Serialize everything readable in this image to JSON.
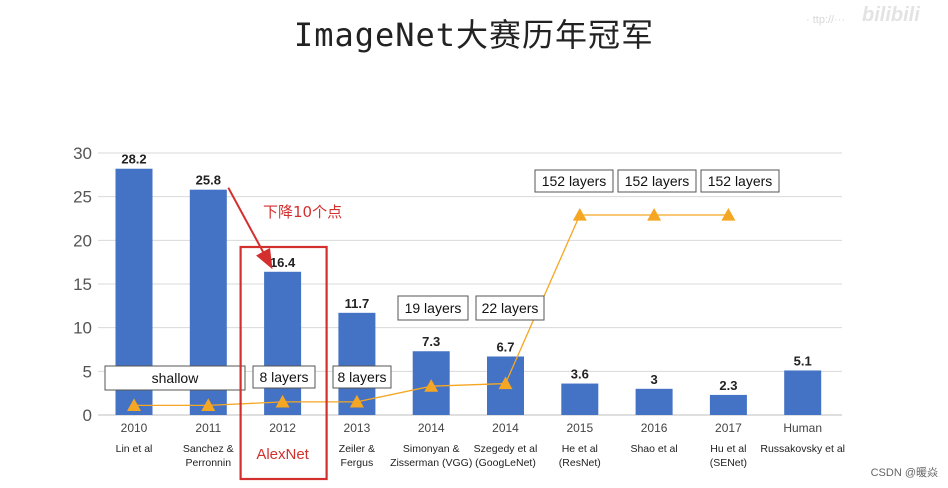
{
  "page": {
    "title": "ImageNet大赛历年冠军",
    "watermark_url": "· ttp://···",
    "watermark_logo": "bilibili",
    "credit": "CSDN @暖焱"
  },
  "chart_data": {
    "type": "bar",
    "title": "ImageNet大赛历年冠军",
    "xlabel": "",
    "ylabel": "",
    "ylim": [
      0,
      30
    ],
    "yticks": [
      0,
      5,
      10,
      15,
      20,
      25,
      30
    ],
    "grid": true,
    "bar_color": "#4472c4",
    "line_color": "#f5a623",
    "highlight_color": "#d32f2f",
    "categories": [
      {
        "year": "2010",
        "label": [
          "Lin et al"
        ]
      },
      {
        "year": "2011",
        "label": [
          "Sanchez &",
          "Perronnin"
        ]
      },
      {
        "year": "2012",
        "label": [
          "AlexNet"
        ]
      },
      {
        "year": "2013",
        "label": [
          "Zeiler &",
          "Fergus"
        ]
      },
      {
        "year": "2014",
        "label": [
          "Simonyan &",
          "Zisserman (VGG)"
        ]
      },
      {
        "year": "2014",
        "label": [
          "Szegedy et al",
          "(GoogLeNet)"
        ]
      },
      {
        "year": "2015",
        "label": [
          "He et al",
          "(ResNet)"
        ]
      },
      {
        "year": "2016",
        "label": [
          "Shao et al"
        ]
      },
      {
        "year": "2017",
        "label": [
          "Hu et al",
          "(SENet)"
        ]
      },
      {
        "year": "Human",
        "label": [
          "Russakovsky et al"
        ]
      }
    ],
    "values": [
      28.2,
      25.8,
      16.4,
      11.7,
      7.3,
      6.7,
      3.6,
      3,
      2.3,
      5.1
    ],
    "value_labels": [
      "28.2",
      "25.8",
      "16.4",
      "11.7",
      "7.3",
      "6.7",
      "3.6",
      "3",
      "2.3",
      "5.1"
    ],
    "layers_series": {
      "values": [
        1.1,
        1.1,
        1.5,
        1.5,
        3.3,
        3.6,
        22.9,
        22.9,
        22.9
      ]
    },
    "layer_boxes": [
      {
        "text": "shallow"
      },
      {
        "text": "8 layers"
      },
      {
        "text": "8 layers"
      },
      {
        "text": "19 layers"
      },
      {
        "text": "22 layers"
      },
      {
        "text": "152 layers"
      },
      {
        "text": "152 layers"
      },
      {
        "text": "152 layers"
      }
    ],
    "annotations": [
      {
        "text": "下降10个点",
        "from_index": 1,
        "to_index": 2
      }
    ],
    "highlight_index": 2
  }
}
